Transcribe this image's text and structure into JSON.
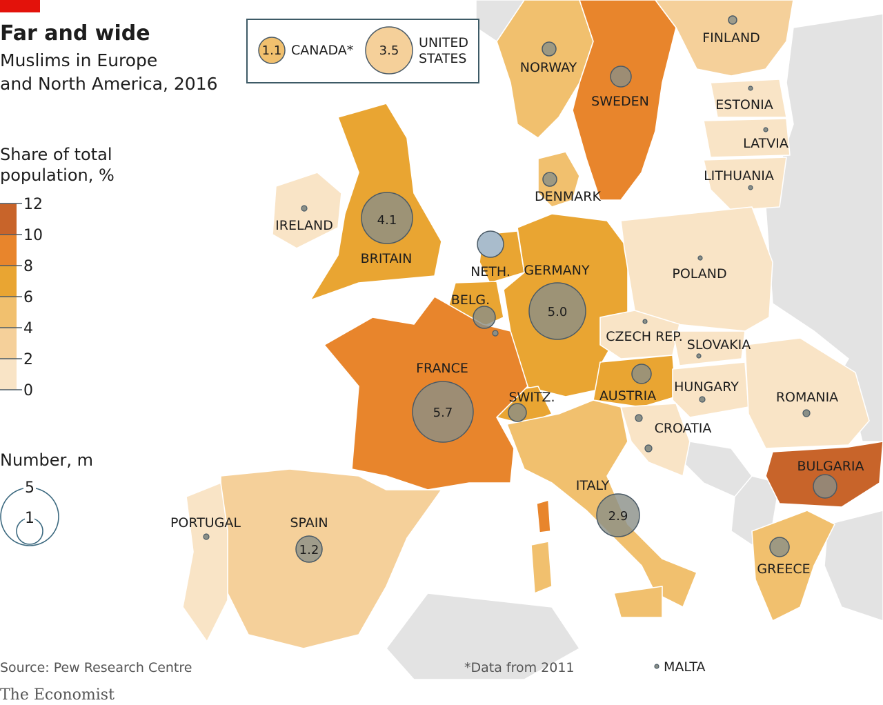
{
  "title": "Far and wide",
  "subtitle_line1": "Muslims in Europe",
  "subtitle_line2": "and North America, 2016",
  "legend_share": {
    "title_line1": "Share of total",
    "title_line2": "population, %",
    "ticks": [
      "12",
      "10",
      "8",
      "6",
      "4",
      "2",
      "0"
    ],
    "colors": [
      "#c8642a",
      "#e8852c",
      "#e9a532",
      "#f1c06e",
      "#f5d09a",
      "#f9e4c6"
    ]
  },
  "legend_number": {
    "title": "Number, m",
    "big_label": "5",
    "small_label": "1"
  },
  "inset": {
    "canada_value": "1.1",
    "canada_label": "CANADA*",
    "us_value": "3.5",
    "us_label_line1": "UNITED",
    "us_label_line2": "STATES"
  },
  "source": "Source: Pew Research Centre",
  "footnote": "*Data from 2011",
  "brand": "The Economist",
  "colors": {
    "accent_red": "#e3120b",
    "sea": "#ffffff",
    "land_other": "#e3e3e3",
    "circle_fill": "#8a8f87",
    "circle_stroke": "#4a5a66",
    "frame": "#3d5a66"
  },
  "countries": [
    {
      "name": "FRANCE",
      "value": "5.7"
    },
    {
      "name": "GERMANY",
      "value": "5.0"
    },
    {
      "name": "BRITAIN",
      "value": "4.1"
    },
    {
      "name": "ITALY",
      "value": "2.9"
    },
    {
      "name": "SPAIN",
      "value": "1.2"
    },
    {
      "name": "SWEDEN",
      "value": ""
    },
    {
      "name": "NORWAY",
      "value": ""
    },
    {
      "name": "FINLAND",
      "value": ""
    },
    {
      "name": "ESTONIA",
      "value": ""
    },
    {
      "name": "LATVIA",
      "value": ""
    },
    {
      "name": "LITHUANIA",
      "value": ""
    },
    {
      "name": "DENMARK",
      "value": ""
    },
    {
      "name": "IRELAND",
      "value": ""
    },
    {
      "name": "NETH.",
      "value": ""
    },
    {
      "name": "BELG.",
      "value": ""
    },
    {
      "name": "POLAND",
      "value": ""
    },
    {
      "name": "CZECH REP.",
      "value": ""
    },
    {
      "name": "SLOVAKIA",
      "value": ""
    },
    {
      "name": "AUSTRIA",
      "value": ""
    },
    {
      "name": "HUNGARY",
      "value": ""
    },
    {
      "name": "ROMANIA",
      "value": ""
    },
    {
      "name": "SWITZ.",
      "value": ""
    },
    {
      "name": "CROATIA",
      "value": ""
    },
    {
      "name": "BULGARIA",
      "value": ""
    },
    {
      "name": "GREECE",
      "value": ""
    },
    {
      "name": "PORTUGAL",
      "value": ""
    },
    {
      "name": "MALTA",
      "value": ""
    }
  ]
}
